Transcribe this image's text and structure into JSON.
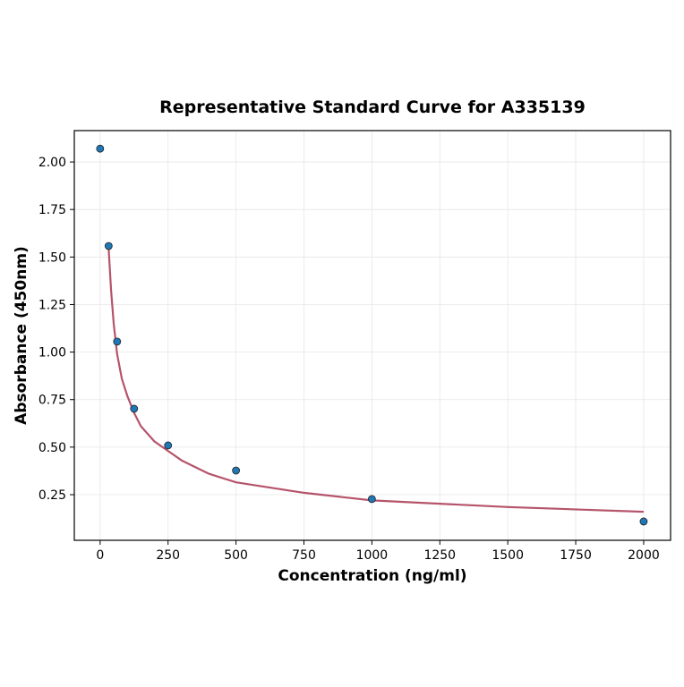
{
  "chart_data": {
    "type": "scatter",
    "title": "Representative Standard Curve for A335139",
    "xlabel": "Concentration (ng/ml)",
    "ylabel": "Absorbance (450nm)",
    "xlim": [
      -95,
      2099
    ],
    "ylim": [
      0.01,
      2.165
    ],
    "grid": true,
    "xticks": [
      0,
      250,
      500,
      750,
      1000,
      1250,
      1500,
      1750,
      2000
    ],
    "yticks": [
      0.25,
      0.5,
      0.75,
      1.0,
      1.25,
      1.5,
      1.75,
      2.0
    ],
    "xtick_labels": [
      "0",
      "250",
      "500",
      "750",
      "1000",
      "1250",
      "1500",
      "1750",
      "2000"
    ],
    "ytick_labels": [
      "0.25",
      "0.50",
      "0.75",
      "1.00",
      "1.25",
      "1.50",
      "1.75",
      "2.00"
    ],
    "points": {
      "x": [
        0,
        31.25,
        62.5,
        125,
        250,
        500,
        1000,
        2000
      ],
      "y": [
        2.07,
        1.558,
        1.055,
        0.702,
        0.509,
        0.377,
        0.227,
        0.109
      ],
      "color": "#1f77b4"
    },
    "fit_curve": {
      "x": [
        31.25,
        40,
        50,
        62.5,
        80,
        100,
        125,
        150,
        200,
        250,
        300,
        400,
        500,
        750,
        1000,
        1500,
        2000
      ],
      "y": [
        1.55,
        1.33,
        1.15,
        0.99,
        0.86,
        0.77,
        0.68,
        0.61,
        0.53,
        0.48,
        0.43,
        0.36,
        0.315,
        0.26,
        0.22,
        0.185,
        0.16
      ],
      "color": "#b5546a"
    }
  }
}
